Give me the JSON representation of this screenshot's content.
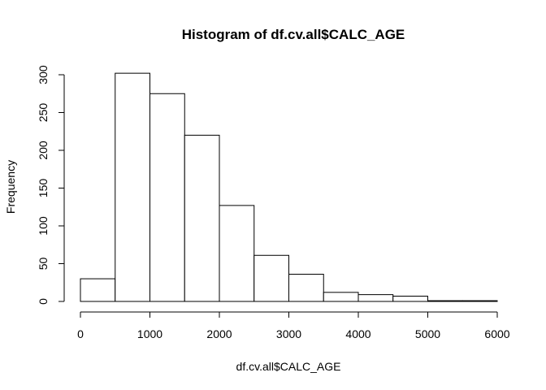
{
  "chart_data": {
    "type": "bar",
    "title": "Histogram of df.cv.all$CALC_AGE",
    "xlabel": "df.cv.all$CALC_AGE",
    "ylabel": "Frequency",
    "bins": [
      {
        "start": 0,
        "end": 500,
        "count": 30
      },
      {
        "start": 500,
        "end": 1000,
        "count": 302
      },
      {
        "start": 1000,
        "end": 1500,
        "count": 275
      },
      {
        "start": 1500,
        "end": 2000,
        "count": 220
      },
      {
        "start": 2000,
        "end": 2500,
        "count": 127
      },
      {
        "start": 2500,
        "end": 3000,
        "count": 61
      },
      {
        "start": 3000,
        "end": 3500,
        "count": 36
      },
      {
        "start": 3500,
        "end": 4000,
        "count": 12
      },
      {
        "start": 4000,
        "end": 4500,
        "count": 9
      },
      {
        "start": 4500,
        "end": 5000,
        "count": 7
      },
      {
        "start": 5000,
        "end": 5500,
        "count": 1
      },
      {
        "start": 5500,
        "end": 6000,
        "count": 1
      }
    ],
    "xlim": [
      0,
      6000
    ],
    "ylim": [
      0,
      300
    ],
    "xticks": [
      "0",
      "1000",
      "2000",
      "3000",
      "4000",
      "5000",
      "6000"
    ],
    "yticks": [
      "0",
      "50",
      "100",
      "150",
      "200",
      "250",
      "300"
    ],
    "grid": false,
    "bar_fill": "#ffffff",
    "bar_stroke": "#000000"
  }
}
